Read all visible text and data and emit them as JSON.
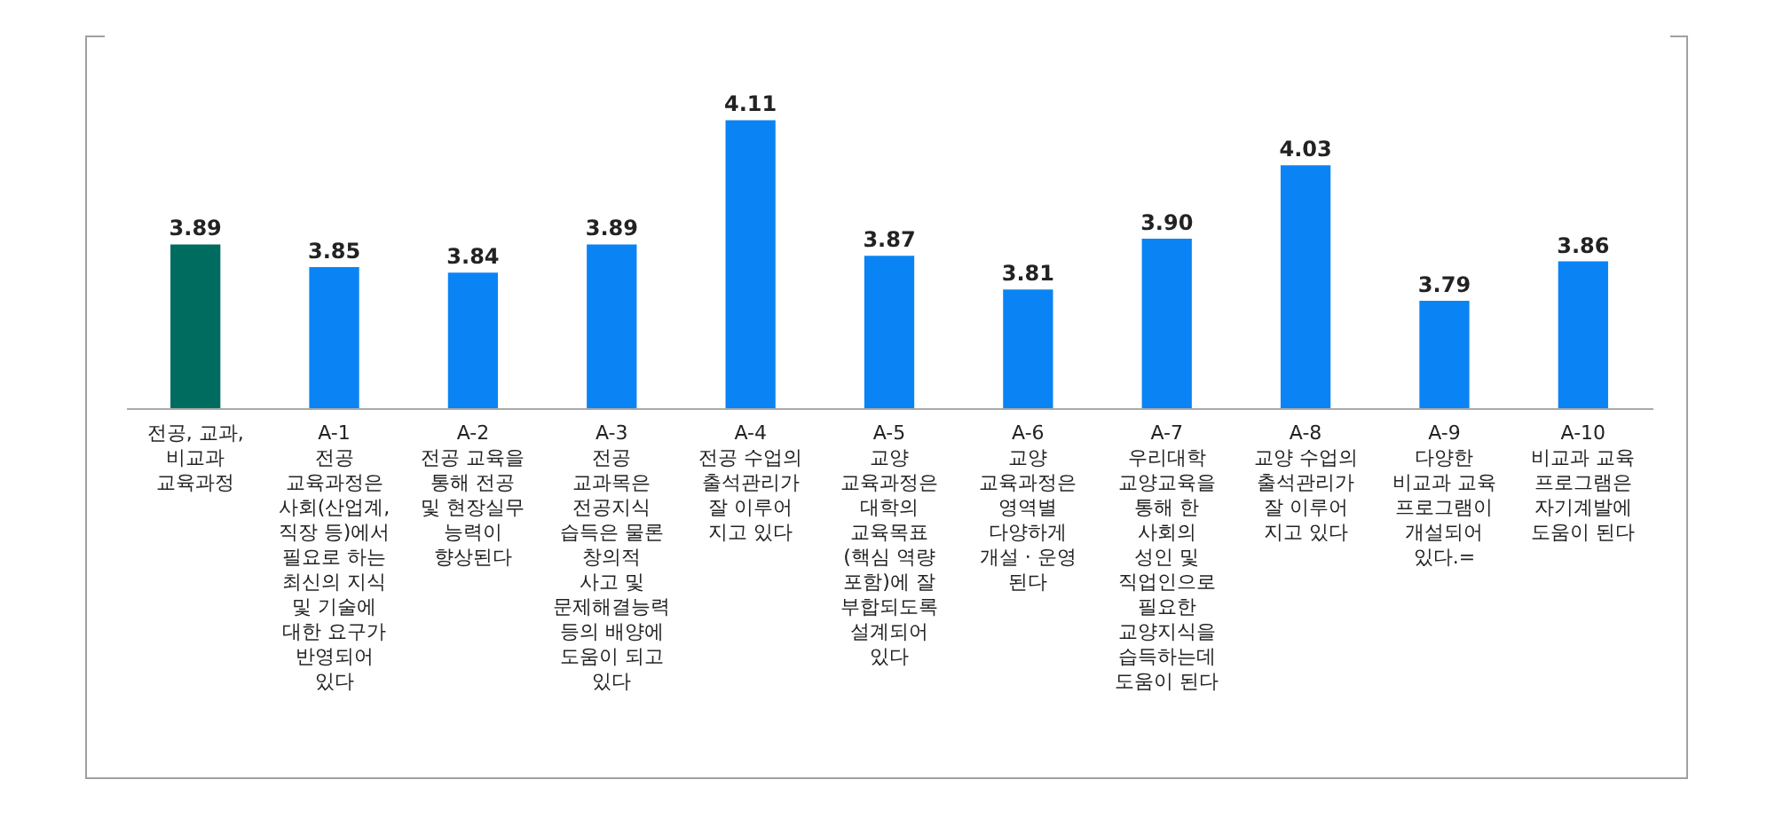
{
  "chart_data": {
    "type": "bar",
    "categories": [
      "전공, 교과,\n비교과\n교육과정",
      "A-1\n전공\n교육과정은\n사회(산업계,\n직장 등)에서\n필요로 하는\n최신의 지식\n및 기술에\n대한 요구가\n반영되어\n있다",
      "A-2\n전공 교육을\n통해 전공\n및 현장실무\n능력이\n향상된다",
      "A-3\n전공\n교과목은\n전공지식\n습득은 물론\n창의적\n사고 및\n문제해결능력\n등의 배양에\n도움이 되고\n있다",
      "A-4\n전공 수업의\n출석관리가\n잘 이루어\n지고 있다",
      "A-5\n교양\n교육과정은\n대학의\n교육목표\n(핵심 역량\n포함)에 잘\n부합되도록\n설계되어\n있다",
      "A-6\n교양\n교육과정은\n영역별\n다양하게\n개설 · 운영\n된다",
      "A-7\n우리대학\n교양교육을\n통해 한\n사회의\n성인 및\n직업인으로\n필요한\n교양지식을\n습득하는데\n도움이 된다",
      "A-8\n교양 수업의\n출석관리가\n잘 이루어\n지고 있다",
      "A-9\n다양한\n비교과 교육\n프로그램이\n개설되어\n있다.=",
      "A-10\n비교과 교육\n프로그램은\n자기계발에\n도움이 된다"
    ],
    "values": [
      3.89,
      3.85,
      3.84,
      3.89,
      4.11,
      3.87,
      3.81,
      3.9,
      4.03,
      3.79,
      3.86
    ],
    "value_labels": [
      "3.89",
      "3.85",
      "3.84",
      "3.89",
      "4.11",
      "3.87",
      "3.81",
      "3.90",
      "4.03",
      "3.79",
      "3.86"
    ],
    "colors": [
      "#006b5f",
      "#0a84f5",
      "#0a84f5",
      "#0a84f5",
      "#0a84f5",
      "#0a84f5",
      "#0a84f5",
      "#0a84f5",
      "#0a84f5",
      "#0a84f5",
      "#0a84f5"
    ],
    "ylim": [
      3.6,
      4.26
    ]
  }
}
